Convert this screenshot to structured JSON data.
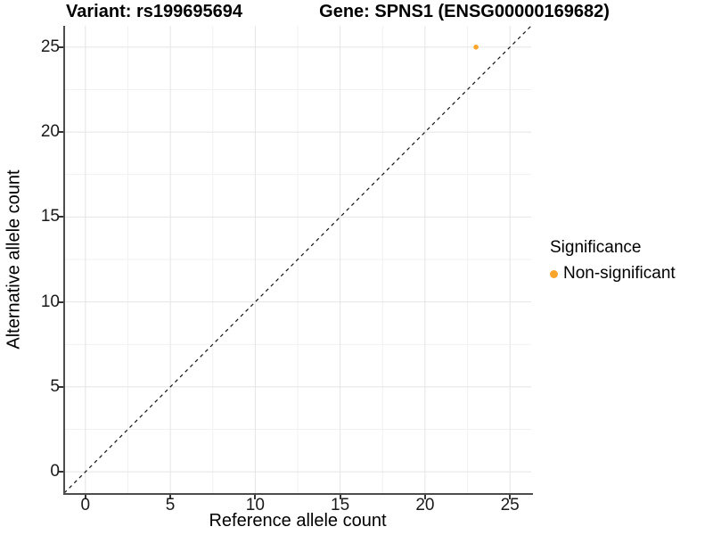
{
  "titles": {
    "variant": "Variant: rs199695694",
    "gene": "Gene: SPNS1 (ENSG00000169682)"
  },
  "axes": {
    "x": {
      "label": "Reference allele count",
      "tick_labels": [
        "0",
        "5",
        "10",
        "15",
        "20",
        "25"
      ]
    },
    "y": {
      "label": "Alternative allele count",
      "tick_labels": [
        "0",
        "5",
        "10",
        "15",
        "20",
        "25"
      ]
    }
  },
  "legend": {
    "title": "Significance",
    "items": [
      {
        "label": "Non-significant",
        "color": "#F9A42A"
      }
    ]
  },
  "colors": {
    "point": "#F9A42A",
    "major_grid": "#E4E4E4",
    "minor_grid": "#F1F1F1",
    "reference_line": "#111111"
  },
  "chart_data": {
    "type": "scatter",
    "title": "Variant: rs199695694 — Gene: SPNS1 (ENSG00000169682)",
    "xlabel": "Reference allele count",
    "ylabel": "Alternative allele count",
    "xlim": [
      -1.25,
      26.25
    ],
    "ylim": [
      -1.25,
      26.25
    ],
    "x_ticks": [
      0,
      5,
      10,
      15,
      20,
      25
    ],
    "y_ticks": [
      0,
      5,
      10,
      15,
      20,
      25
    ],
    "grid": true,
    "legend_position": "right",
    "series": [
      {
        "name": "Non-significant",
        "color": "#F9A42A",
        "points": [
          {
            "x": 23,
            "y": 25
          }
        ]
      }
    ],
    "reference_line": {
      "style": "dashed",
      "slope": 1,
      "intercept": 0
    }
  }
}
